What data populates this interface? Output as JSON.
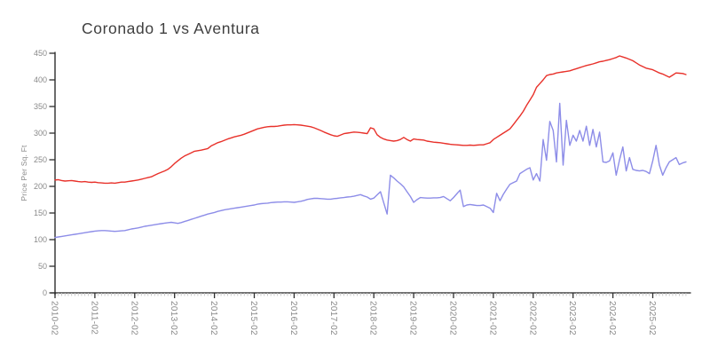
{
  "page": {
    "background": "#ffffff"
  },
  "chart_data": {
    "type": "line",
    "title": "Coronado 1 vs Aventura",
    "xlabel": "",
    "ylabel": "Price Per Sq. Ft",
    "x_start": "2010-02",
    "x_frequency": "monthly",
    "x_tick_labels": [
      "2010-02",
      "2011-02",
      "2012-02",
      "2013-02",
      "2014-02",
      "2015-02",
      "2016-02",
      "2017-02",
      "2018-02",
      "2019-02",
      "2020-02",
      "2021-02",
      "2022-02",
      "2023-02",
      "2024-02",
      "2025-02"
    ],
    "y_ticks": [
      0,
      50,
      100,
      150,
      200,
      250,
      300,
      350,
      400,
      450
    ],
    "ylim": [
      0,
      450
    ],
    "grid": false,
    "legend": "none",
    "axis_color": "#1c1c1c",
    "major_tick_color": "#2e2e2e",
    "minor_tick_color": "#c3c3c3",
    "tick_label_color": "#8a8a8a",
    "title_color": "#3f3f3f",
    "series": [
      {
        "name": "Coronado 1",
        "color": "#e8312a",
        "values": [
          212,
          212.5,
          211,
          210,
          210.5,
          211,
          210,
          209,
          208.5,
          209,
          208,
          207.5,
          208,
          207,
          206.5,
          206,
          206,
          206.5,
          206,
          207,
          208,
          208,
          209,
          210,
          211,
          212,
          213.5,
          215,
          216.5,
          218,
          221,
          224,
          226.5,
          229,
          232,
          237,
          243,
          248,
          253,
          257,
          260,
          263,
          266,
          267,
          268,
          269.5,
          271,
          276,
          279,
          282,
          284,
          286.5,
          289,
          291,
          293,
          294.5,
          296,
          298,
          300.5,
          303,
          305.5,
          308,
          309.5,
          311,
          312,
          312.5,
          312.5,
          313,
          314,
          315,
          315.5,
          315.5,
          316,
          315.5,
          315,
          314,
          313,
          312,
          310,
          307.5,
          305,
          302,
          299.5,
          297,
          295,
          294,
          296.5,
          299,
          300,
          301,
          302,
          301.5,
          301,
          300,
          299,
          310,
          308,
          297,
          292,
          289,
          287,
          286,
          285,
          286,
          288,
          292,
          288,
          285,
          289,
          288,
          287.5,
          287,
          285,
          284,
          283,
          282.5,
          282,
          281,
          280,
          279,
          278.5,
          278,
          277.5,
          277,
          277,
          277.5,
          277,
          277.5,
          278,
          278,
          280,
          282,
          288,
          292,
          296,
          300,
          304,
          308,
          316,
          324,
          332,
          341,
          352,
          362,
          372,
          386,
          393,
          400,
          408,
          410,
          411,
          413,
          414,
          415,
          416,
          417,
          419,
          421,
          423,
          425,
          427,
          428.5,
          430,
          432,
          434,
          435,
          436.5,
          438,
          440,
          442,
          445,
          443,
          441,
          438.5,
          436,
          432,
          428,
          425,
          422,
          420.5,
          419,
          416,
          413,
          411,
          408,
          405,
          409,
          413,
          412.5,
          412,
          410
        ]
      },
      {
        "name": "Aventura",
        "color": "#8d8de8",
        "values": [
          104,
          105,
          106,
          107,
          108,
          109,
          110,
          111,
          112,
          113,
          114,
          115,
          116,
          116.5,
          117,
          117,
          116.5,
          116,
          115.5,
          116,
          116.5,
          117,
          118.5,
          120,
          121,
          122,
          123.5,
          125,
          126,
          127,
          128,
          129,
          130,
          131,
          131.8,
          132.5,
          131.5,
          130.5,
          132,
          134,
          136,
          138,
          140,
          142,
          144,
          146,
          148,
          149.5,
          151,
          153,
          154.5,
          156,
          157,
          158,
          159,
          160,
          161,
          162,
          163,
          164,
          165,
          166.5,
          167.5,
          168,
          168.5,
          169.5,
          170,
          170.5,
          170.5,
          171,
          171,
          170.5,
          170,
          171,
          172,
          173.5,
          175.5,
          176.5,
          177.5,
          177.5,
          177,
          176.5,
          176,
          176,
          177,
          177.5,
          178.5,
          179,
          180,
          180.5,
          181.5,
          183,
          184.5,
          182,
          180,
          176,
          178,
          184,
          190,
          169,
          148,
          221,
          216,
          210,
          205,
          199,
          190,
          181,
          170,
          175,
          179,
          178.5,
          178,
          178,
          178.5,
          178.5,
          179,
          181,
          177,
          173,
          179,
          186,
          193,
          162,
          165,
          166,
          165,
          164,
          164,
          165,
          162,
          159,
          151,
          187,
          173,
          185,
          195,
          204,
          207,
          210,
          224,
          228,
          232,
          235,
          212,
          224,
          210,
          288,
          249,
          322,
          305,
          246,
          356,
          240,
          324,
          277,
          296,
          285,
          305,
          285,
          313,
          277,
          307,
          274,
          302,
          246,
          245,
          248,
          263,
          221,
          250,
          274,
          229,
          254,
          232,
          230,
          229,
          230,
          228,
          224,
          248,
          277,
          240,
          221,
          235,
          246,
          250,
          254,
          241,
          244,
          246
        ]
      }
    ]
  }
}
